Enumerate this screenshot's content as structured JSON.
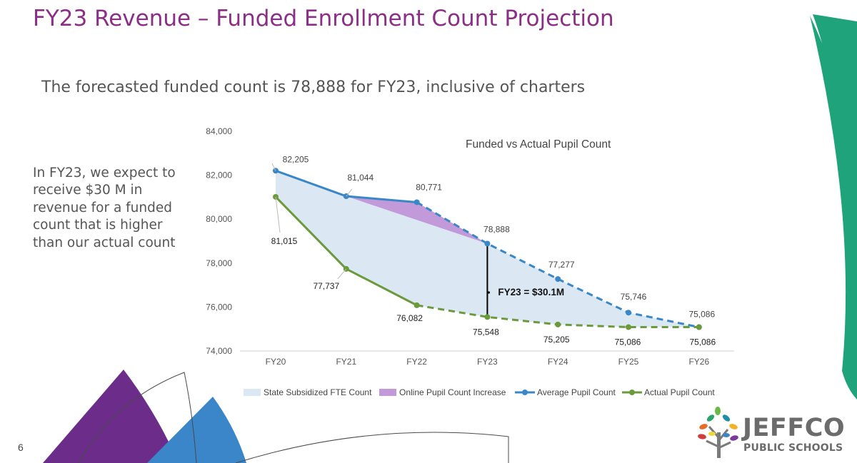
{
  "slide": {
    "title": "FY23 Revenue – Funded Enrollment Count Projection",
    "subtitle": "The forecasted funded count is 78,888 for FY23, inclusive of charters",
    "side_text": "In FY23, we expect to receive $30 M in revenue for a funded count that is higher than our actual count",
    "page_number": "6"
  },
  "logo": {
    "name": "JEFFCO",
    "sub": "PUBLIC SCHOOLS"
  },
  "colors": {
    "title": "#8b2f86",
    "average_line": "#3a87c8",
    "actual_line": "#6b9a3c",
    "fill_fte": "#dbe8f4",
    "fill_online": "#c29ad9",
    "green_decor": "#1fa37b",
    "purple_decor": "#6b2c8a",
    "blue_decor": "#3a86c9"
  },
  "chart_data": {
    "type": "line",
    "title": "Funded vs Actual Pupil Count",
    "categories": [
      "FY20",
      "FY21",
      "FY22",
      "FY23",
      "FY24",
      "FY25",
      "FY26"
    ],
    "ylim": [
      74000,
      84000
    ],
    "yticks": [
      74000,
      76000,
      78000,
      80000,
      82000,
      84000
    ],
    "ytick_labels": [
      "74,000",
      "76,000",
      "78,000",
      "80,000",
      "82,000",
      "84,000"
    ],
    "series": [
      {
        "name": "Average Pupil Count",
        "values": [
          82205,
          81044,
          80771,
          78888,
          77277,
          75746,
          75086
        ],
        "labels": [
          "82,205",
          "81,044",
          "80,771",
          "78,888",
          "77,277",
          "75,746",
          "75,086"
        ],
        "style": "solid through FY22, dashed after",
        "color": "#3a87c8"
      },
      {
        "name": "Actual Pupil Count",
        "values": [
          81015,
          77737,
          76082,
          75548,
          75205,
          75086,
          75086
        ],
        "labels": [
          "81,015",
          "77,737",
          "76,082",
          "75,548",
          "75,205",
          "75,086",
          "75,086"
        ],
        "style": "solid through FY22, dashed after",
        "color": "#6b9a3c"
      }
    ],
    "areas": [
      {
        "name": "State Subsidized FTE Count",
        "color": "#dbe8f4",
        "description": "area between Average and Actual counts"
      },
      {
        "name": "Online Pupil Count Increase",
        "color": "#c29ad9",
        "description": "wedge between FY21 and FY23"
      }
    ],
    "annotation": {
      "text": "FY23 = $30.1M",
      "category": "FY23"
    },
    "legend": [
      "State Subsidized FTE Count",
      "Online Pupil Count Increase",
      "Average Pupil Count",
      "Actual Pupil Count"
    ],
    "legend_position": "bottom",
    "grid": false
  }
}
